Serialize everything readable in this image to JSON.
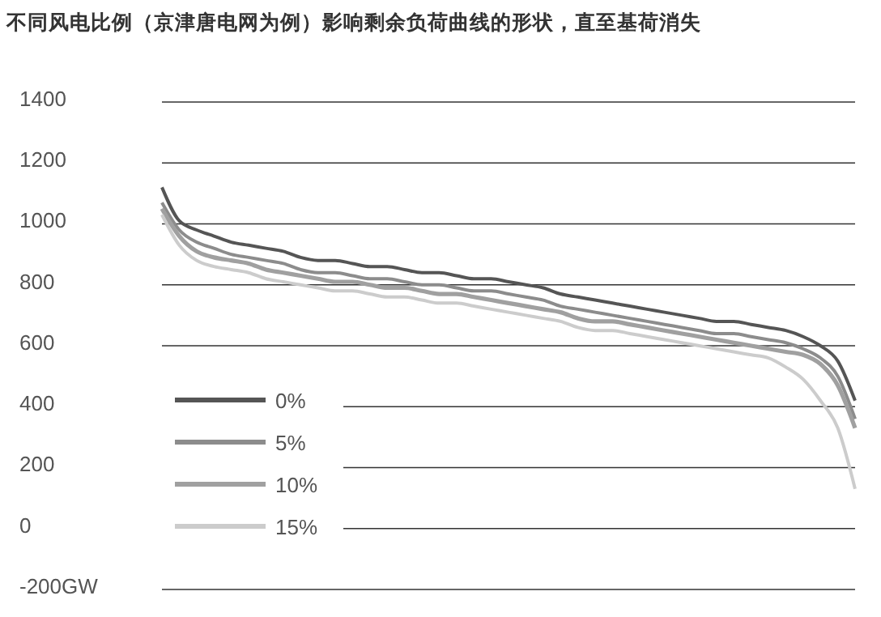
{
  "chart_data": {
    "type": "line",
    "title": "不同风电比例（京津唐电网为例）影响剩余负荷曲线的形状，直至基荷消失",
    "categories": [
      null,
      null,
      null,
      null,
      null,
      null,
      null,
      null,
      null,
      null,
      null,
      null,
      null,
      null,
      null,
      null,
      null,
      null,
      null,
      null,
      null,
      null,
      null,
      null,
      null,
      null,
      null,
      null,
      null,
      null,
      null,
      null,
      null,
      null,
      null,
      null,
      null,
      null,
      null,
      null,
      null
    ],
    "series": [
      {
        "name": "0%",
        "color": "#555555",
        "values": [
          1120,
          1010,
          980,
          960,
          940,
          930,
          920,
          910,
          890,
          880,
          880,
          870,
          860,
          860,
          850,
          840,
          840,
          830,
          820,
          820,
          810,
          800,
          790,
          770,
          760,
          750,
          740,
          730,
          720,
          710,
          700,
          690,
          680,
          680,
          670,
          660,
          650,
          630,
          600,
          550,
          420
        ]
      },
      {
        "name": "5%",
        "color": "#8c8c8c",
        "values": [
          1070,
          980,
          940,
          920,
          900,
          890,
          880,
          870,
          850,
          840,
          840,
          830,
          820,
          820,
          810,
          800,
          800,
          790,
          780,
          780,
          770,
          760,
          750,
          730,
          720,
          710,
          700,
          690,
          680,
          670,
          660,
          650,
          640,
          640,
          630,
          620,
          610,
          590,
          560,
          500,
          360
        ]
      },
      {
        "name": "10%",
        "color": "#a0a0a0",
        "values": [
          1050,
          960,
          910,
          890,
          880,
          870,
          850,
          840,
          830,
          820,
          810,
          810,
          800,
          790,
          790,
          780,
          770,
          770,
          760,
          750,
          740,
          730,
          720,
          710,
          690,
          680,
          680,
          670,
          660,
          650,
          640,
          630,
          620,
          610,
          600,
          590,
          580,
          570,
          540,
          470,
          330
        ]
      },
      {
        "name": "15%",
        "color": "#cccccc",
        "values": [
          1030,
          930,
          880,
          860,
          850,
          840,
          820,
          810,
          800,
          790,
          780,
          780,
          770,
          760,
          760,
          750,
          740,
          740,
          730,
          720,
          710,
          700,
          690,
          680,
          660,
          650,
          650,
          640,
          630,
          620,
          610,
          600,
          590,
          580,
          570,
          560,
          530,
          490,
          420,
          330,
          130
        ]
      }
    ],
    "ylim": [
      -200,
      1400
    ],
    "yticks": [
      {
        "value": -200,
        "label": "-200GW"
      },
      0,
      200,
      400,
      600,
      800,
      1000,
      1200,
      1400
    ],
    "grid": "y",
    "legend": "bottom left",
    "tick_labels": "y",
    "marker": "none",
    "line_style": "solid"
  }
}
